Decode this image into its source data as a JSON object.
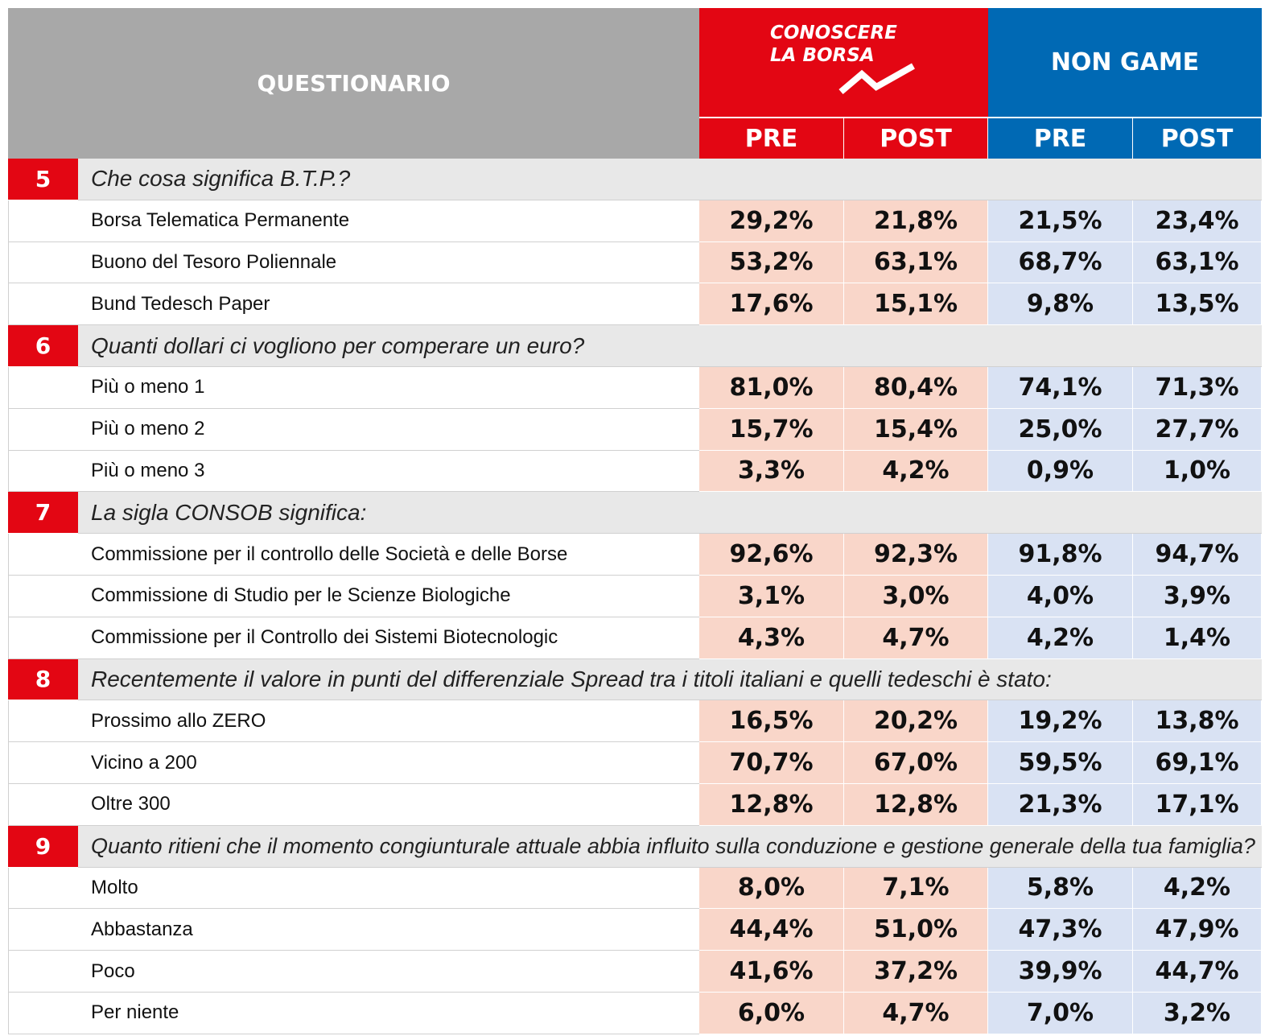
{
  "header": {
    "title": "QUESTIONARIO",
    "group1": [
      "CONOSCERE",
      "LA BORSA"
    ],
    "group2": "NON GAME",
    "subcolumns": [
      "PRE",
      "POST",
      "PRE",
      "POST"
    ]
  },
  "questions": [
    {
      "number": "5",
      "text": "Che cosa significa B.T.P.?",
      "answers": [
        {
          "label": "Borsa Telematica Permanente",
          "values": [
            "29,2%",
            "21,8%",
            "21,5%",
            "23,4%"
          ]
        },
        {
          "label": "Buono del Tesoro Poliennale",
          "values": [
            "53,2%",
            "63,1%",
            "68,7%",
            "63,1%"
          ]
        },
        {
          "label": "Bund Tedesch Paper",
          "values": [
            "17,6%",
            "15,1%",
            "9,8%",
            "13,5%"
          ]
        }
      ]
    },
    {
      "number": "6",
      "text": "Quanti dollari ci vogliono per comperare un euro?",
      "answers": [
        {
          "label": "Più o meno 1",
          "values": [
            "81,0%",
            "80,4%",
            "74,1%",
            "71,3%"
          ]
        },
        {
          "label": "Più o meno 2",
          "values": [
            "15,7%",
            "15,4%",
            "25,0%",
            "27,7%"
          ]
        },
        {
          "label": "Più o meno 3",
          "values": [
            "3,3%",
            "4,2%",
            "0,9%",
            "1,0%"
          ]
        }
      ]
    },
    {
      "number": "7",
      "text": "La sigla CONSOB significa:",
      "answers": [
        {
          "label": "Commissione per il controllo delle Società e delle Borse",
          "values": [
            "92,6%",
            "92,3%",
            "91,8%",
            "94,7%"
          ]
        },
        {
          "label": "Commissione di Studio per le Scienze Biologiche",
          "values": [
            "3,1%",
            "3,0%",
            "4,0%",
            "3,9%"
          ]
        },
        {
          "label": "Commissione per il Controllo dei Sistemi Biotecnologic",
          "values": [
            "4,3%",
            "4,7%",
            "4,2%",
            "1,4%"
          ]
        }
      ]
    },
    {
      "number": "8",
      "text": "Recentemente il valore in punti del differenziale Spread tra i titoli italiani e quelli tedeschi è stato:",
      "answers": [
        {
          "label": "Prossimo allo ZERO",
          "values": [
            "16,5%",
            "20,2%",
            "19,2%",
            "13,8%"
          ]
        },
        {
          "label": "Vicino a 200",
          "values": [
            "70,7%",
            "67,0%",
            "59,5%",
            "69,1%"
          ]
        },
        {
          "label": "Oltre 300",
          "values": [
            "12,8%",
            "12,8%",
            "21,3%",
            "17,1%"
          ]
        }
      ]
    },
    {
      "number": "9",
      "text": "Quanto ritieni che il momento congiunturale attuale abbia influito sulla conduzione e gestione generale della tua famiglia?",
      "answers": [
        {
          "label": "Molto",
          "values": [
            "8,0%",
            "7,1%",
            "5,8%",
            "4,2%"
          ]
        },
        {
          "label": "Abbastanza",
          "values": [
            "44,4%",
            "51,0%",
            "47,3%",
            "47,9%"
          ]
        },
        {
          "label": "Poco",
          "values": [
            "41,6%",
            "37,2%",
            "39,9%",
            "44,7%"
          ]
        },
        {
          "label": "Per niente",
          "values": [
            "6,0%",
            "4,7%",
            "7,0%",
            "3,2%"
          ]
        }
      ]
    }
  ]
}
